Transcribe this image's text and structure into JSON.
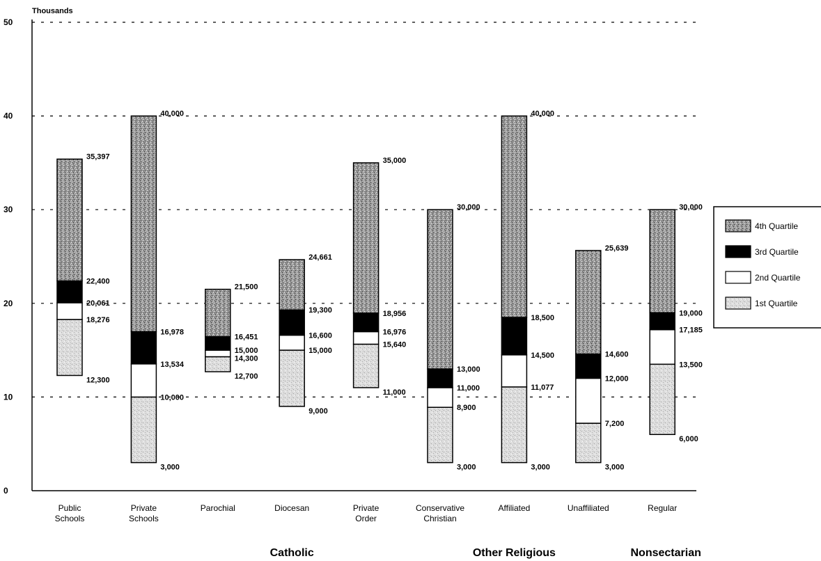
{
  "chart_data": {
    "type": "bar",
    "subtype": "stacked-range (quartile boxes)",
    "unit_label": "Thousands",
    "ylim": [
      0,
      50
    ],
    "y_ticks": [
      "0",
      "10",
      "20",
      "30",
      "40",
      "50"
    ],
    "grid": "dashed horizontal at 10, 20, 30, 40, 50",
    "legend_position": "right",
    "legend": [
      {
        "key": "q4",
        "label": "4th Quartile",
        "pattern": "dense-stipple"
      },
      {
        "key": "q3",
        "label": "3rd Quartile",
        "pattern": "solid-black"
      },
      {
        "key": "q2",
        "label": "2nd Quartile",
        "pattern": "white"
      },
      {
        "key": "q1",
        "label": "1st Quartile",
        "pattern": "light-stipple"
      }
    ],
    "categories": [
      {
        "label": [
          "Public",
          "Schools"
        ],
        "min": 12300,
        "q1": 18276,
        "median": 20061,
        "q3": 22400,
        "max": 35397,
        "labels": [
          "12,300",
          "18,276",
          "20,061",
          "22,400",
          "35,397"
        ]
      },
      {
        "label": [
          "Private",
          "Schools"
        ],
        "min": 3000,
        "q1": 10000,
        "median": 13534,
        "q3": 16978,
        "max": 40000,
        "labels": [
          "3,000",
          "10,000",
          "13,534",
          "16,978",
          "40,000"
        ]
      },
      {
        "label": [
          "Parochial"
        ],
        "min": 12700,
        "q1": 14300,
        "median": 15000,
        "q3": 16451,
        "max": 21500,
        "labels": [
          "12,700",
          "14,300",
          "15,000",
          "16,451",
          "21,500"
        ]
      },
      {
        "label": [
          "Diocesan"
        ],
        "min": 9000,
        "q1": 15000,
        "median": 16600,
        "q3": 19300,
        "max": 24661,
        "labels": [
          "9,000",
          "15,000",
          "16,600",
          "19,300",
          "24,661"
        ]
      },
      {
        "label": [
          "Private",
          "Order"
        ],
        "min": 11000,
        "q1": 15640,
        "median": 16976,
        "q3": 18956,
        "max": 35000,
        "labels": [
          "11,000",
          "15,640",
          "16,976",
          "18,956",
          "35,000"
        ]
      },
      {
        "label": [
          "Conservative",
          "Christian"
        ],
        "min": 3000,
        "q1": 8900,
        "median": 11000,
        "q3": 13000,
        "max": 30000,
        "labels": [
          "3,000",
          "8,900",
          "11,000",
          "13,000",
          "30,000"
        ]
      },
      {
        "label": [
          "Affiliated"
        ],
        "min": 3000,
        "q1": 11077,
        "median": 14500,
        "q3": 18500,
        "max": 40000,
        "labels": [
          "3,000",
          "11,077",
          "14,500",
          "18,500",
          "40,000"
        ]
      },
      {
        "label": [
          "Unaffiliated"
        ],
        "min": 3000,
        "q1": 7200,
        "median": 12000,
        "q3": 14600,
        "max": 25639,
        "labels": [
          "3,000",
          "7,200",
          "12,000",
          "14,600",
          "25,639"
        ]
      },
      {
        "label": [
          "Regular"
        ],
        "min": 6000,
        "q1": 13500,
        "median": 17185,
        "q3": 19000,
        "max": 30000,
        "labels": [
          "6,000",
          "13,500",
          "17,185",
          "19,000",
          "30,000"
        ]
      }
    ],
    "groups": [
      {
        "label": "Catholic",
        "under": [
          2,
          3,
          4
        ]
      },
      {
        "label": "Other Religious",
        "under": [
          5,
          6,
          7
        ]
      },
      {
        "label": "Nonsectarian",
        "under": [
          8
        ]
      }
    ]
  }
}
